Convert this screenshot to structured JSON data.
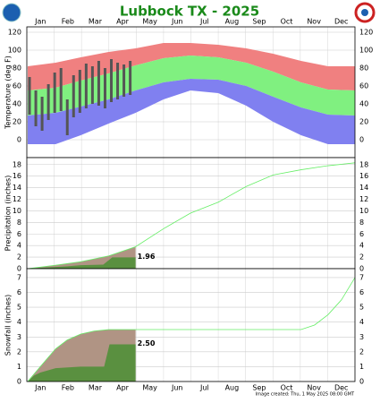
{
  "title": "Lubbock TX - 2025",
  "months": [
    "Jan",
    "Feb",
    "Mar",
    "Apr",
    "May",
    "Jun",
    "Jul",
    "Aug",
    "Sep",
    "Oct",
    "Nov",
    "Dec"
  ],
  "footer": "Image created: Thu, 1 May 2025 08:00 GMT",
  "chart_data": [
    {
      "type": "band",
      "ylabel": "Temperature (deg F)",
      "xlim": [
        0,
        365
      ],
      "ylim": [
        -20,
        126
      ],
      "yticks": [
        0,
        20,
        40,
        60,
        80,
        100,
        120
      ],
      "x": [
        1,
        32,
        60,
        91,
        121,
        152,
        182,
        213,
        244,
        274,
        305,
        335,
        365
      ],
      "series": [
        {
          "color": "#f08080",
          "values": [
            82,
            86,
            92,
            98,
            102,
            108,
            108,
            106,
            102,
            96,
            88,
            82,
            82
          ]
        },
        {
          "color": "#80f080",
          "values": [
            55,
            58,
            66,
            74,
            83,
            91,
            94,
            92,
            86,
            76,
            64,
            56,
            55
          ]
        },
        {
          "color": "#8080f0",
          "values": [
            27,
            30,
            37,
            45,
            55,
            64,
            68,
            67,
            60,
            48,
            36,
            28,
            27
          ]
        },
        {
          "color": "#8080f0",
          "values": [
            -5,
            -5,
            5,
            18,
            30,
            45,
            55,
            52,
            38,
            20,
            5,
            -5,
            -5
          ]
        }
      ],
      "observed": {
        "color": "#555555",
        "x": [
          3,
          10,
          17,
          24,
          31,
          38,
          45,
          52,
          59,
          66,
          73,
          80,
          87,
          94,
          101,
          108,
          115
        ],
        "high": [
          70,
          55,
          48,
          62,
          75,
          80,
          45,
          72,
          78,
          85,
          82,
          88,
          80,
          90,
          86,
          84,
          88
        ],
        "low": [
          28,
          15,
          10,
          22,
          30,
          32,
          5,
          25,
          30,
          35,
          40,
          38,
          35,
          42,
          45,
          48,
          50
        ]
      }
    },
    {
      "type": "cumulative",
      "ylabel": "Precipitation (inches)",
      "xlim": [
        0,
        365
      ],
      "ylim": [
        0,
        19.2
      ],
      "yticks": [
        0,
        2,
        4,
        6,
        8,
        10,
        12,
        14,
        16,
        18
      ],
      "normal": {
        "fill": "#b09484",
        "color": "#66ee66",
        "x": [
          1,
          32,
          60,
          91,
          121,
          152,
          182,
          213,
          244,
          274,
          305,
          335,
          365
        ],
        "values": [
          0,
          0.6,
          1.2,
          2.2,
          3.8,
          6.9,
          9.6,
          11.5,
          14.2,
          16.2,
          17.1,
          17.8,
          18.3
        ]
      },
      "observed": {
        "color": "#5a9040",
        "x": [
          1,
          20,
          45,
          60,
          85,
          95,
          121
        ],
        "values": [
          0,
          0.2,
          0.4,
          0.6,
          0.7,
          1.96,
          1.96
        ]
      },
      "annotation": "1.96"
    },
    {
      "type": "cumulative",
      "ylabel": "Snowfall (inches)",
      "xlim": [
        0,
        365
      ],
      "ylim": [
        0,
        7.6
      ],
      "yticks": [
        0,
        1,
        2,
        3,
        4,
        5,
        6,
        7
      ],
      "normal": {
        "fill": "#b09484",
        "color": "#66ee66",
        "x": [
          1,
          15,
          32,
          45,
          60,
          75,
          91,
          121,
          180,
          244,
          305,
          320,
          335,
          350,
          365
        ],
        "values": [
          0,
          1.0,
          2.2,
          2.8,
          3.2,
          3.4,
          3.5,
          3.5,
          3.5,
          3.5,
          3.5,
          3.8,
          4.5,
          5.5,
          7.0
        ]
      },
      "observed": {
        "color": "#5a9040",
        "x": [
          1,
          8,
          15,
          32,
          60,
          86,
          92,
          121
        ],
        "values": [
          0,
          0.4,
          0.6,
          0.9,
          1.0,
          1.0,
          2.5,
          2.5
        ]
      },
      "annotation": "2.50"
    }
  ]
}
